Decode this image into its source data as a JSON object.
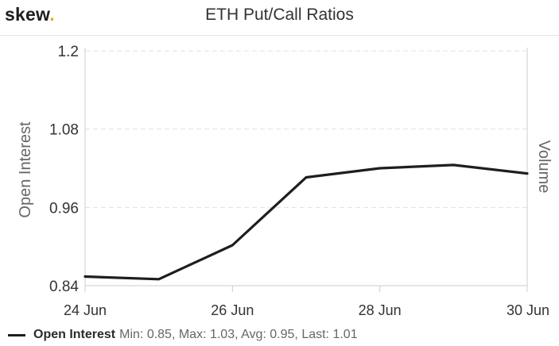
{
  "header": {
    "brand": "skew",
    "brand_dot": ".",
    "title": "ETH Put/Call Ratios"
  },
  "colors": {
    "line": "#1e1e1e",
    "brand_accent": "#f2a900",
    "grid": "#e0e0e0",
    "axis": "#cccccc",
    "label": "#333333"
  },
  "chart_data": {
    "type": "line",
    "title": "ETH Put/Call Ratios",
    "ylabel": "Open Interest",
    "ylabel_right": "Volume",
    "ylim": [
      0.84,
      1.2
    ],
    "yticks": [
      "1.2",
      "1.08",
      "0.96",
      "0.84"
    ],
    "yticks_values": [
      1.2,
      1.08,
      0.96,
      0.84
    ],
    "xlim": [
      "24 Jun",
      "30 Jun"
    ],
    "xticks": [
      "24 Jun",
      "26 Jun",
      "28 Jun",
      "30 Jun"
    ],
    "grid": true,
    "legend_position": "bottom-left",
    "series": [
      {
        "name": "Open Interest",
        "x": [
          "24 Jun",
          "25 Jun",
          "26 Jun",
          "27 Jun",
          "28 Jun",
          "29 Jun",
          "30 Jun"
        ],
        "values": [
          0.854,
          0.85,
          0.902,
          1.006,
          1.02,
          1.025,
          1.012
        ]
      }
    ]
  },
  "legend": {
    "series_name": "Open Interest",
    "stats": "Min: 0.85, Max: 1.03, Avg: 0.95, Last: 1.01"
  }
}
